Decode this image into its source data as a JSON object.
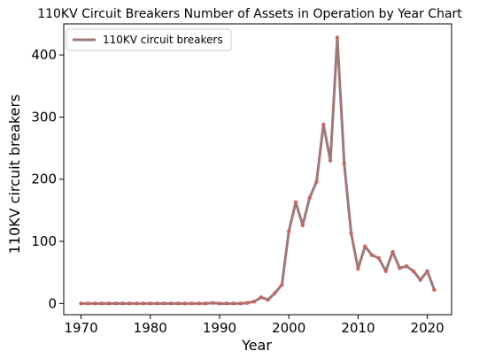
{
  "chart_data": {
    "type": "line",
    "title": "110KV Circuit Breakers Number of Assets in Operation by Year Chart",
    "xlabel": "Year",
    "ylabel": "110KV circuit breakers",
    "xlim": [
      1967.5,
      2023.5
    ],
    "ylim": [
      -18,
      450
    ],
    "xticks": [
      1970,
      1980,
      1990,
      2000,
      2010,
      2020
    ],
    "yticks": [
      0,
      100,
      200,
      300,
      400
    ],
    "grid": false,
    "legend_position": "top-left",
    "series": [
      {
        "name": "110KV circuit breakers",
        "color": "#a07878",
        "x": [
          1970,
          1971,
          1972,
          1973,
          1974,
          1975,
          1976,
          1977,
          1978,
          1979,
          1980,
          1981,
          1982,
          1983,
          1984,
          1985,
          1986,
          1987,
          1988,
          1989,
          1990,
          1991,
          1992,
          1993,
          1994,
          1995,
          1996,
          1997,
          1998,
          1999,
          2000,
          2001,
          2002,
          2003,
          2004,
          2005,
          2006,
          2007,
          2008,
          2009,
          2010,
          2011,
          2012,
          2013,
          2014,
          2015,
          2016,
          2017,
          2018,
          2019,
          2020,
          2021
        ],
        "y": [
          0,
          0,
          0,
          0,
          0,
          0,
          0,
          0,
          0,
          0,
          0,
          0,
          0,
          0,
          0,
          0,
          0,
          0,
          0,
          1,
          0,
          0,
          0,
          0,
          1,
          3,
          10,
          6,
          17,
          30,
          116,
          163,
          126,
          170,
          196,
          288,
          230,
          428,
          225,
          113,
          56,
          92,
          78,
          73,
          52,
          83,
          57,
          60,
          52,
          38,
          52,
          22
        ]
      }
    ]
  }
}
